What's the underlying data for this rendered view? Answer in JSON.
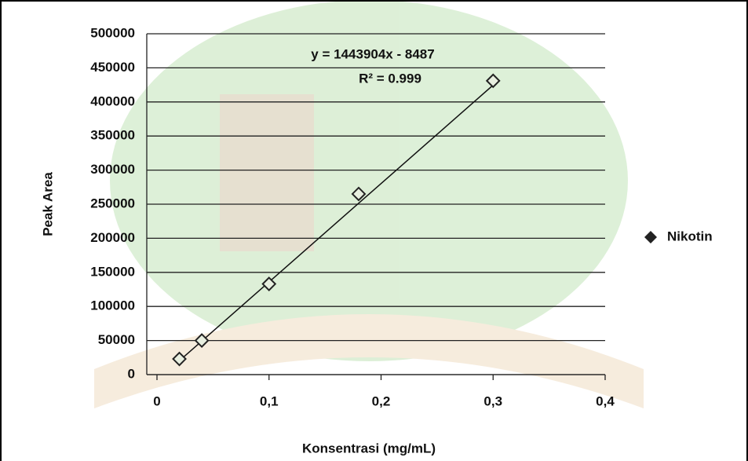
{
  "chart_data": {
    "type": "scatter",
    "x_label": "Konsentrasi (mg/mL)",
    "y_label": "Peak Area",
    "series": [
      {
        "name": "Nikotin",
        "color": "#222222",
        "x": [
          0.02,
          0.04,
          0.1,
          0.18,
          0.3
        ],
        "values": [
          23000,
          50000,
          133000,
          265000,
          431000
        ]
      }
    ],
    "trendline": {
      "label": "y = 1443904x - 8487",
      "slope": 1443904,
      "intercept": -8487,
      "r2_label": "R² = 0.999"
    },
    "xlim": [
      0,
      0.4
    ],
    "xticks": [
      0,
      {
        "value": 0.1,
        "label": "0,1"
      },
      {
        "value": 0.2,
        "label": "0,2"
      },
      {
        "value": 0.3,
        "label": "0,3"
      },
      {
        "value": 0.4,
        "label": "0,4"
      }
    ],
    "ylim": [
      0,
      500000
    ],
    "yticks": [
      0,
      50000,
      100000,
      150000,
      200000,
      250000,
      300000,
      350000,
      400000,
      450000,
      500000
    ],
    "grid": true,
    "legend": "right"
  }
}
